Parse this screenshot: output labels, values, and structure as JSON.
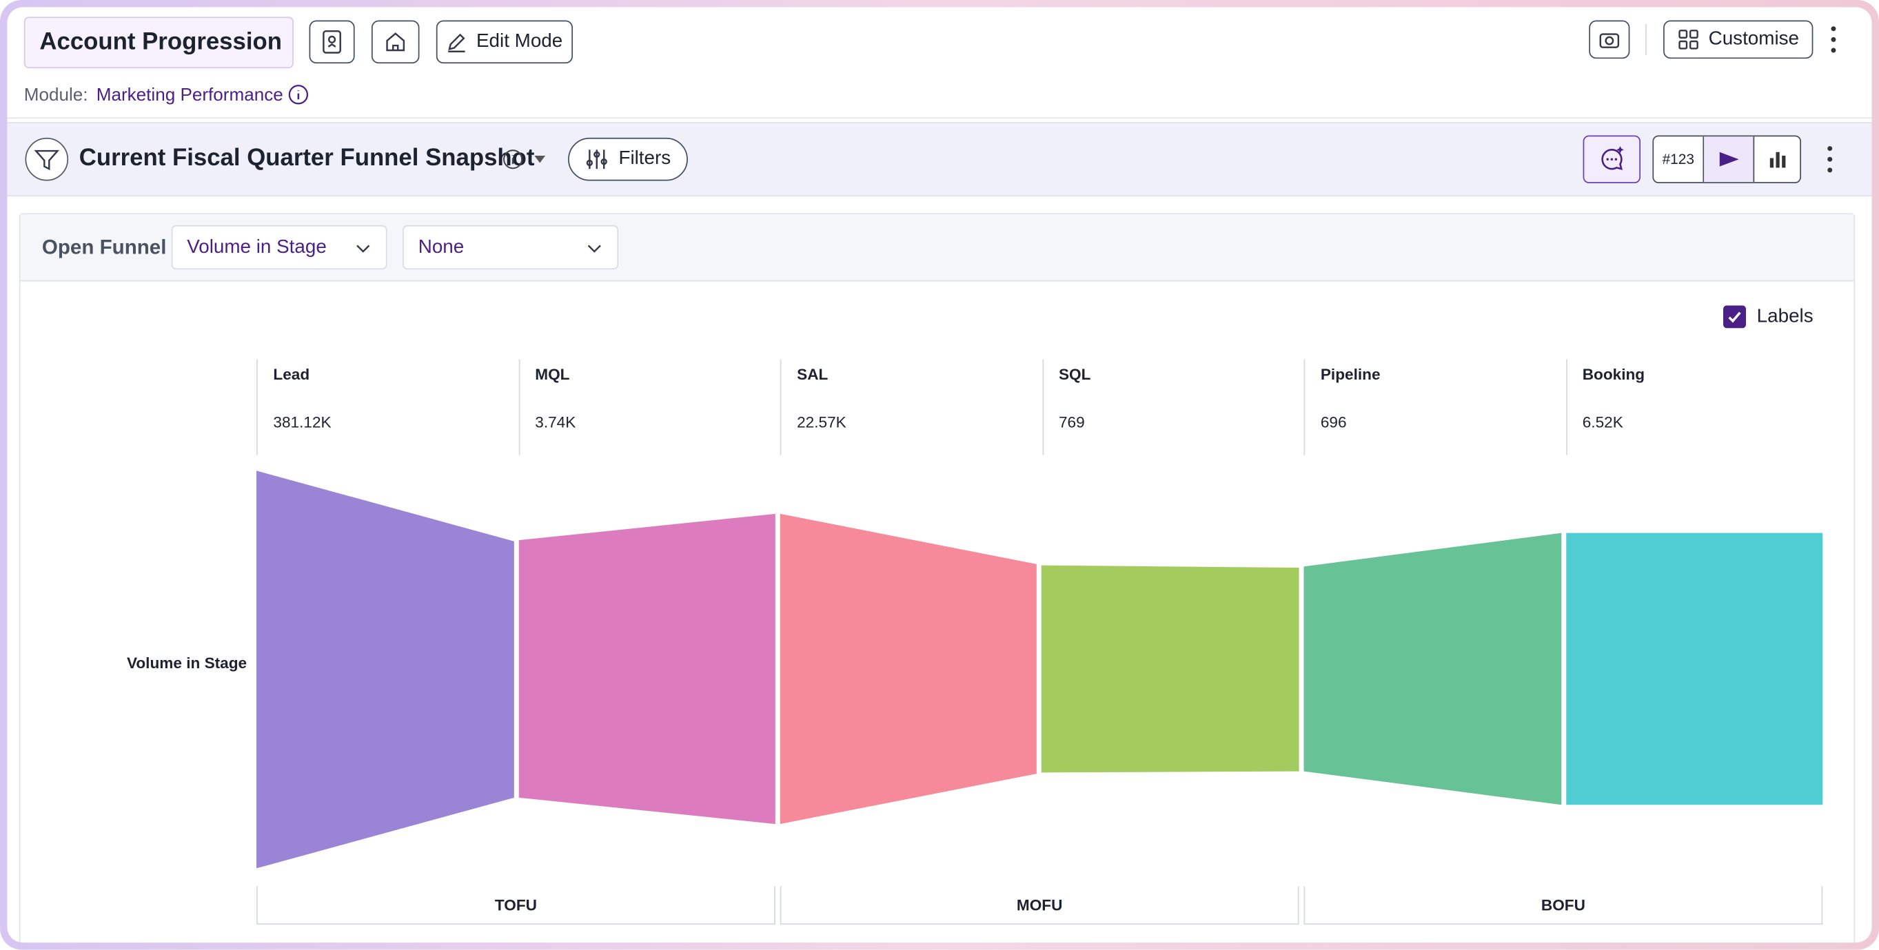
{
  "header": {
    "title": "Account Progression",
    "edit_button": "Edit Mode",
    "module_label": "Module:",
    "module_name": "Marketing Performance",
    "customise_button": "Customise"
  },
  "panel": {
    "title": "Current Fiscal Quarter Funnel Snapshot",
    "filters_button": "Filters",
    "format_badge": "#123"
  },
  "toolbar": {
    "funnel_type": "Open Funnel",
    "metric": "Volume in Stage",
    "breakdown": "None"
  },
  "chart": {
    "labels_toggle": "Labels",
    "y_label": "Volume in Stage",
    "stages": [
      {
        "name": "Lead",
        "value": "381.12K"
      },
      {
        "name": "MQL",
        "value": "3.74K"
      },
      {
        "name": "SAL",
        "value": "22.57K"
      },
      {
        "name": "SQL",
        "value": "769"
      },
      {
        "name": "Pipeline",
        "value": "696"
      },
      {
        "name": "Booking",
        "value": "6.52K"
      }
    ],
    "groups": [
      "TOFU",
      "MOFU",
      "BOFU"
    ]
  }
}
